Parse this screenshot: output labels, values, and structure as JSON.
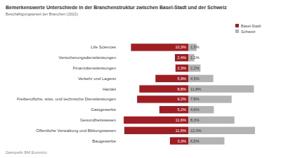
{
  "chart_data": {
    "type": "bar",
    "orientation": "horizontal",
    "title": "Bemerkenswerte Unterschiede in der Branchenstruktur zwischen Basel-Stadt und der Schweiz",
    "subtitle": "Beschäftigungsanteil der Branchen (2022)",
    "source": "Datenquelle: BAK Economics",
    "categories": [
      "Life Sciences",
      "Versicherungsdienstleistungen",
      "Finanzdienstleistungen",
      "Verkehr und Lagerei",
      "Handel",
      "Freiberufliche, wiss. und technische Dienstleistungen",
      "Gastgewerbe",
      "Gesundheitswesen",
      "Öffentliche Verwaltung und Bildungswesen",
      "Baugewerbe"
    ],
    "series": [
      {
        "name": "Basel-Stadt",
        "color": "#a11d21",
        "values": [
          10.3,
          2.4,
          2.3,
          5.9,
          8.8,
          9.2,
          5.2,
          11.6,
          11.5,
          3.3
        ],
        "value_labels": [
          "10,3%",
          "2,4%",
          "2,3%",
          "5,9%",
          "8,8%",
          "9,2%",
          "5,2%",
          "11,6%",
          "11,5%",
          "3,3%"
        ]
      },
      {
        "name": "Schweiz",
        "color": "#b3b3b3",
        "values": [
          1.5,
          1.1,
          2.2,
          4.5,
          11.8,
          7.8,
          4.6,
          8.3,
          12.0,
          6.5
        ],
        "value_labels": [
          "1,5%",
          "1,1%",
          "2,2%",
          "4,5%",
          "11,8%",
          "7,8%",
          "4,6%",
          "8,3%",
          "12,0%",
          "6,5%"
        ]
      }
    ],
    "data_labels": true,
    "legend": "top-right",
    "tick_labels": "y",
    "grid": false
  }
}
